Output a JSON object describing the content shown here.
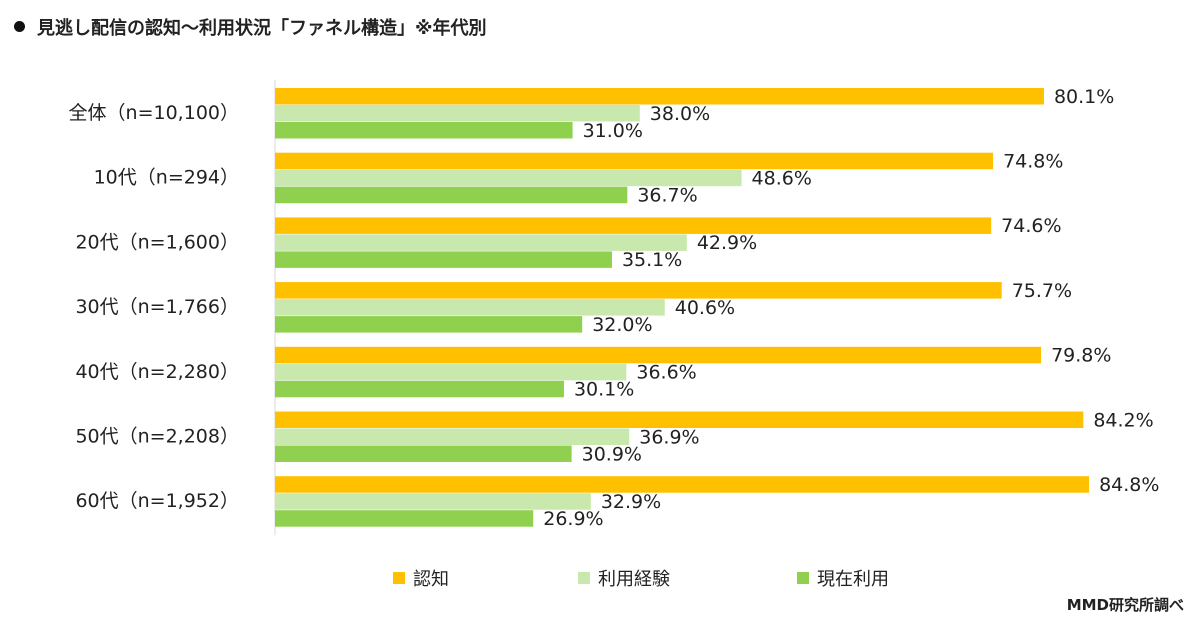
{
  "title": "見逃し配信の認知～利用状況「ファネル構造」※年代別",
  "source": "MMD研究所調べ",
  "colors": {
    "認知": "#FFC000",
    "利用経験": "#C9E8AE",
    "現在利用": "#8FD14F"
  },
  "chart_data": {
    "type": "bar",
    "orientation": "horizontal",
    "categories": [
      "全体（n=10,100）",
      "10代（n=294）",
      "20代（n=1,600）",
      "30代（n=1,766）",
      "40代（n=2,280）",
      "50代（n=2,208）",
      "60代（n=1,952）"
    ],
    "series": [
      {
        "name": "認知",
        "values": [
          80.1,
          74.8,
          74.6,
          75.7,
          79.8,
          84.2,
          84.8
        ]
      },
      {
        "name": "利用経験",
        "values": [
          38.0,
          48.6,
          42.9,
          40.6,
          36.6,
          36.9,
          32.9
        ]
      },
      {
        "name": "現在利用",
        "values": [
          31.0,
          36.7,
          35.1,
          32.0,
          30.1,
          30.9,
          26.9
        ]
      }
    ],
    "value_suffix": "%",
    "xlim": [
      0,
      100
    ],
    "grid": false,
    "legend": "bottom"
  }
}
